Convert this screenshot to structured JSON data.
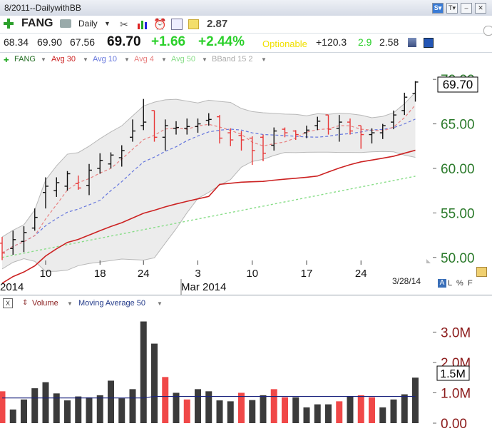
{
  "window": {
    "title": "8/2011--DailywithBB"
  },
  "toolbar": {
    "symbol": "FANG",
    "period": "Daily",
    "value": "2.87"
  },
  "quote": {
    "open": "68.34",
    "high": "69.90",
    "low": "67.56",
    "last": "69.70",
    "change": "+1.66",
    "change_pct": "+2.44%",
    "optionable": "Optionable",
    "v1": "+120.3",
    "v2": "2.9",
    "v3": "2.58"
  },
  "legend": [
    {
      "label": "FANG",
      "color": "#1f6b1f"
    },
    {
      "label": "Avg 30",
      "color": "#cc2222"
    },
    {
      "label": "Avg 10",
      "color": "#6677dd"
    },
    {
      "label": "Avg 4",
      "color": "#e88080"
    },
    {
      "label": "Avg 50",
      "color": "#88dd88"
    },
    {
      "label": "BBand 15 2",
      "color": "#aaaaaa"
    }
  ],
  "price_label": "69.70",
  "date_label": "3/28/14",
  "corner_letters": [
    "A",
    "L",
    "%",
    "F"
  ],
  "volume_header": {
    "close": "X",
    "volume": "Volume",
    "ma": "Moving Average 50"
  },
  "volume_label": "1.5M",
  "chart_data": [
    {
      "type": "ohlc",
      "y_ticks": [
        "50.00",
        "55.00",
        "60.00",
        "65.00",
        "70.00"
      ],
      "ylim": [
        49.5,
        71.3
      ],
      "x_ticks": [
        "10",
        "18",
        "24",
        "3",
        "10",
        "17",
        "24"
      ],
      "x_tick_index": [
        4,
        9,
        13,
        18,
        23,
        28,
        33
      ],
      "period_labels": [
        "2014",
        "Mar 2014"
      ],
      "bars": [
        {
          "o": 51.6,
          "h": 52.3,
          "l": 49.7,
          "c": 50.5
        },
        {
          "o": 51.0,
          "h": 53.0,
          "l": 50.3,
          "c": 52.0
        },
        {
          "o": 51.8,
          "h": 53.5,
          "l": 50.6,
          "c": 52.8
        },
        {
          "o": 53.3,
          "h": 55.5,
          "l": 53.0,
          "c": 54.5
        },
        {
          "o": 57.3,
          "h": 59.0,
          "l": 55.5,
          "c": 58.0
        },
        {
          "o": 57.5,
          "h": 59.0,
          "l": 56.8,
          "c": 58.4
        },
        {
          "o": 58.0,
          "h": 59.7,
          "l": 57.5,
          "c": 59.4
        },
        {
          "o": 58.3,
          "h": 59.2,
          "l": 57.6,
          "c": 57.8
        },
        {
          "o": 58.1,
          "h": 60.5,
          "l": 57.0,
          "c": 59.8
        },
        {
          "o": 60.0,
          "h": 61.7,
          "l": 59.4,
          "c": 60.9
        },
        {
          "o": 60.5,
          "h": 61.8,
          "l": 60.0,
          "c": 61.5
        },
        {
          "o": 61.2,
          "h": 62.6,
          "l": 60.2,
          "c": 62.0
        },
        {
          "o": 63.5,
          "h": 65.5,
          "l": 63.0,
          "c": 64.2
        },
        {
          "o": 64.8,
          "h": 67.8,
          "l": 64.3,
          "c": 65.2
        },
        {
          "o": 66.5,
          "h": 66.5,
          "l": 63.0,
          "c": 63.5
        },
        {
          "o": 63.5,
          "h": 65.5,
          "l": 62.0,
          "c": 64.8
        },
        {
          "o": 64.5,
          "h": 65.3,
          "l": 63.8,
          "c": 64.6
        },
        {
          "o": 64.5,
          "h": 65.6,
          "l": 63.8,
          "c": 64.7
        },
        {
          "o": 64.7,
          "h": 65.6,
          "l": 64.0,
          "c": 65.0
        },
        {
          "o": 65.4,
          "h": 66.2,
          "l": 64.8,
          "c": 65.5
        },
        {
          "o": 65.8,
          "h": 66.0,
          "l": 62.8,
          "c": 63.4
        },
        {
          "o": 64.0,
          "h": 64.5,
          "l": 62.5,
          "c": 63.2
        },
        {
          "o": 63.7,
          "h": 64.2,
          "l": 62.0,
          "c": 63.2
        },
        {
          "o": 63.4,
          "h": 63.6,
          "l": 60.4,
          "c": 62.0
        },
        {
          "o": 63.5,
          "h": 63.8,
          "l": 60.8,
          "c": 61.7
        },
        {
          "o": 62.6,
          "h": 64.6,
          "l": 62.0,
          "c": 64.2
        },
        {
          "o": 64.4,
          "h": 64.6,
          "l": 63.5,
          "c": 64.0
        },
        {
          "o": 64.2,
          "h": 64.3,
          "l": 63.2,
          "c": 63.8
        },
        {
          "o": 64.0,
          "h": 64.8,
          "l": 63.4,
          "c": 64.3
        },
        {
          "o": 64.8,
          "h": 65.8,
          "l": 64.3,
          "c": 65.3
        },
        {
          "o": 66.0,
          "h": 66.0,
          "l": 63.8,
          "c": 64.4
        },
        {
          "o": 64.5,
          "h": 66.0,
          "l": 63.0,
          "c": 65.2
        },
        {
          "o": 65.2,
          "h": 65.6,
          "l": 63.8,
          "c": 64.2
        },
        {
          "o": 64.8,
          "h": 64.8,
          "l": 62.2,
          "c": 63.8
        },
        {
          "o": 63.8,
          "h": 64.5,
          "l": 62.8,
          "c": 64.0
        },
        {
          "o": 64.0,
          "h": 65.0,
          "l": 63.3,
          "c": 64.8
        },
        {
          "o": 65.2,
          "h": 66.5,
          "l": 64.4,
          "c": 66.0
        },
        {
          "o": 66.5,
          "h": 68.5,
          "l": 66.0,
          "c": 68.0
        },
        {
          "o": 68.4,
          "h": 69.8,
          "l": 67.5,
          "c": 69.7
        }
      ],
      "bar_colors": {
        "up": "#111111",
        "down": "#e83838"
      }
    },
    {
      "type": "bar",
      "y_ticks": [
        "0.00",
        "1.0M",
        "2.0M",
        "3.0M"
      ],
      "ylim": [
        0,
        3.55
      ],
      "unit": "M",
      "values": [
        1.05,
        0.45,
        0.78,
        1.15,
        1.35,
        0.98,
        0.75,
        0.88,
        0.85,
        0.92,
        1.4,
        0.82,
        1.12,
        3.35,
        2.62,
        1.52,
        1.0,
        0.78,
        1.12,
        1.05,
        0.75,
        0.72,
        1.0,
        0.76,
        0.92,
        1.12,
        0.85,
        0.85,
        0.52,
        0.62,
        0.62,
        0.72,
        0.88,
        0.92,
        0.85,
        0.52,
        0.78,
        0.95,
        1.5
      ],
      "down_index": [
        0,
        15,
        17,
        22,
        25,
        26,
        31,
        33,
        34
      ],
      "colors": {
        "up": "#3b3b3b",
        "down": "#f04848"
      },
      "moving_average_50": 0.83
    }
  ]
}
